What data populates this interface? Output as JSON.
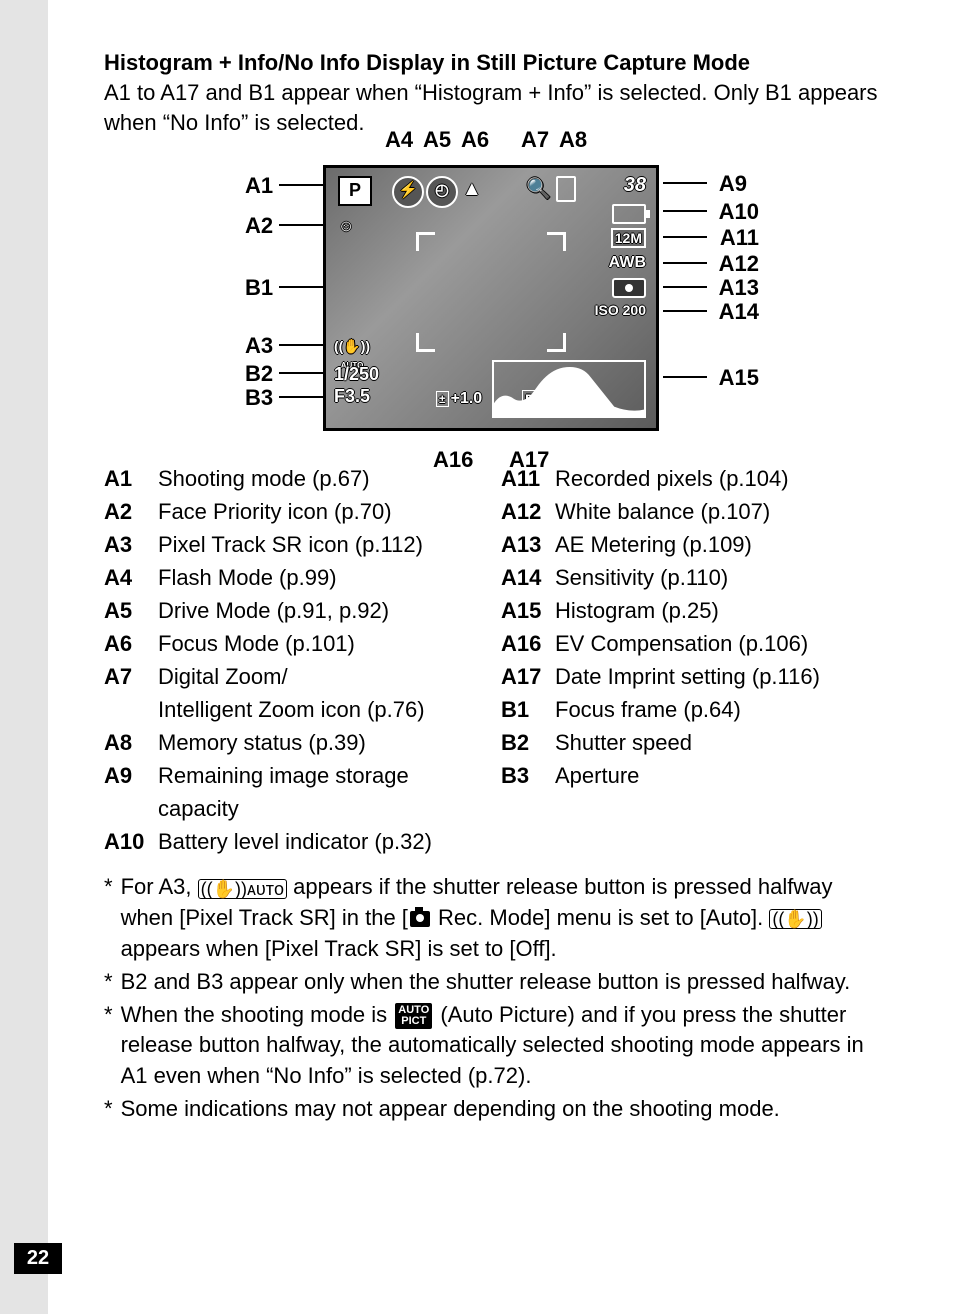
{
  "page_number": "22",
  "heading": "Histogram + Info/No Info Display in Still Picture Capture Mode",
  "intro": "A1 to A17 and B1 appear when “Histogram + Info” is selected. Only B1 appears when “No Info” is selected.",
  "diagram": {
    "top_labels": [
      "A4",
      "A5",
      "A6",
      "A7",
      "A8"
    ],
    "left_labels": [
      "A1",
      "A2",
      "B1",
      "A3",
      "B2",
      "B3"
    ],
    "right_labels": [
      "A9",
      "A10",
      "A11",
      "A12",
      "A13",
      "A14",
      "A15"
    ],
    "bottom_labels": [
      "A16",
      "A17"
    ],
    "screen": {
      "mode_letter": "P",
      "flash": "⚡",
      "timer": "◴",
      "focus": "▲",
      "zoom": "🔍",
      "count": "38",
      "pixels": "12M",
      "awb": "AWB",
      "iso": "ISO 200",
      "face": "☺",
      "sr": "((✋))",
      "sr_sub": "AUTO",
      "shutter": "1/250",
      "fnumber": "F3.5",
      "ev_label": "±",
      "ev": "+1.0",
      "date": "DATE"
    }
  },
  "legend_left": [
    {
      "code": "A1",
      "desc": "Shooting mode (p.67)"
    },
    {
      "code": "A2",
      "desc": "Face Priority icon (p.70)"
    },
    {
      "code": "A3",
      "desc": "Pixel Track SR icon (p.112)"
    },
    {
      "code": "A4",
      "desc": "Flash Mode (p.99)"
    },
    {
      "code": "A5",
      "desc": "Drive Mode (p.91, p.92)"
    },
    {
      "code": "A6",
      "desc": "Focus Mode (p.101)"
    },
    {
      "code": "A7",
      "desc": "Digital Zoom/\nIntelligent Zoom icon (p.76)"
    },
    {
      "code": "A8",
      "desc": "Memory status (p.39)"
    },
    {
      "code": "A9",
      "desc": "Remaining image storage capacity"
    },
    {
      "code": "A10",
      "desc": "Battery level indicator (p.32)"
    }
  ],
  "legend_right": [
    {
      "code": "A11",
      "desc": "Recorded pixels (p.104)"
    },
    {
      "code": "A12",
      "desc": "White balance (p.107)"
    },
    {
      "code": "A13",
      "desc": "AE Metering (p.109)"
    },
    {
      "code": "A14",
      "desc": "Sensitivity (p.110)"
    },
    {
      "code": "A15",
      "desc": "Histogram (p.25)"
    },
    {
      "code": "A16",
      "desc": "EV Compensation (p.106)"
    },
    {
      "code": "A17",
      "desc": "Date Imprint setting (p.116)"
    },
    {
      "code": "B1",
      "desc": "Focus frame (p.64)"
    },
    {
      "code": "B2",
      "desc": "Shutter speed"
    },
    {
      "code": "B3",
      "desc": "Aperture"
    }
  ],
  "notes": {
    "n1_a": "For A3, ",
    "n1_icon1": "((✋))ᴀᴜᴛᴏ",
    "n1_b": " appears if the shutter release button is pressed halfway when [Pixel Track SR] in the [",
    "n1_c": " Rec. Mode] menu is set to [Auto]. ",
    "n1_icon2": "((✋))",
    "n1_d": " appears when [Pixel Track SR] is set to [Off].",
    "n2": "B2 and B3 appear only when the shutter release button is pressed halfway.",
    "n3_a": "When the shooting mode is ",
    "n3_icon": "AUTO\nPICT",
    "n3_b": " (Auto Picture) and if you press the shutter release button halfway, the automatically selected shooting mode appears in A1 even when “No Info” is selected (p.72).",
    "n4": "Some indications may not appear depending on the shooting mode."
  }
}
